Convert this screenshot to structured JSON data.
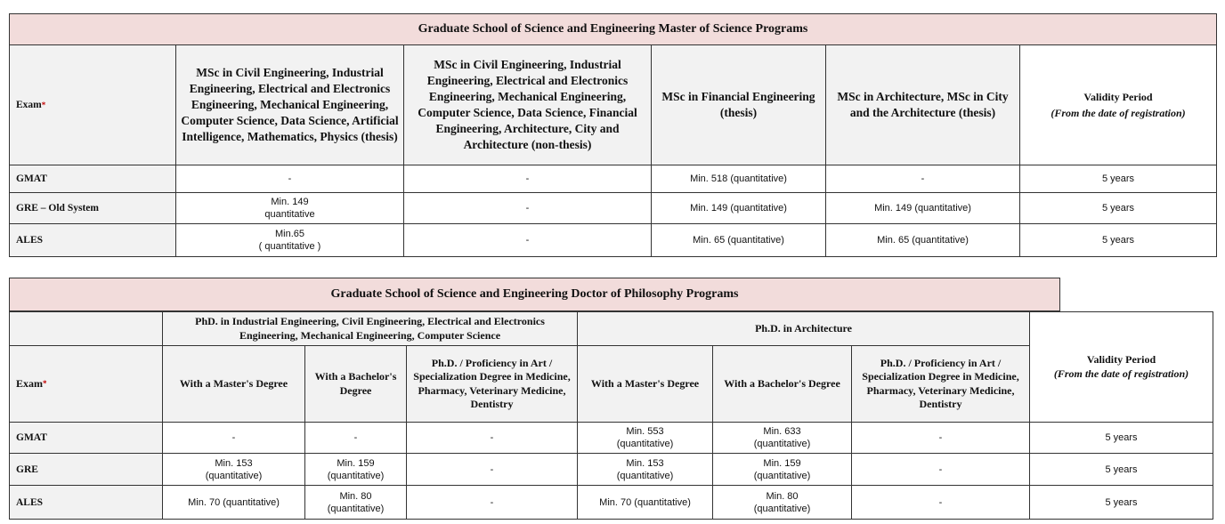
{
  "masters": {
    "title": "Graduate School of Science and Engineering Master of Science Programs",
    "exam_header": "Exam",
    "exam_marker": "*",
    "columns": [
      "MSc in Civil Engineering, Industrial Engineering, Electrical and Electronics Engineering, Mechanical Engineering, Computer Science, Data Science, Artificial Intelligence, Mathematics, Physics (thesis)",
      "MSc in Civil Engineering,  Industrial Engineering, Electrical and Electronics Engineering, Mechanical Engineering, Computer Science, Data Science, Financial Engineering, Architecture, City and Architecture (non-thesis)",
      "MSc in Financial Engineering (thesis)",
      "MSc in Architecture, MSc in City and the Architecture (thesis)"
    ],
    "validity_header": "Validity Period",
    "validity_sub": "(From the date of registration)",
    "rows": [
      {
        "exam": "GMAT",
        "cells": [
          "-",
          "-",
          "Min. 518 (quantitative)",
          "-",
          "5 years"
        ]
      },
      {
        "exam": "GRE – Old System",
        "cells": [
          "Min. 149\nquantitative",
          "-",
          "Min. 149 (quantitative)",
          "Min. 149 (quantitative)",
          "5 years"
        ]
      },
      {
        "exam": "ALES",
        "cells": [
          "Min.65\n( quantitative )",
          "-",
          "Min. 65 (quantitative)",
          "Min. 65 (quantitative)",
          "5 years"
        ]
      }
    ]
  },
  "phd": {
    "title": "Graduate School of Science and Engineering Doctor of Philosophy Programs",
    "group1": "PhD. in Industrial Engineering, Civil Engineering, Electrical and Electronics Engineering, Mechanical Engineering, Computer Science",
    "group2": "Ph.D. in Architecture",
    "exam_header": "Exam",
    "exam_marker": "*",
    "columns": [
      "With a Master's Degree",
      "With a Bachelor's Degree",
      "Ph.D. / Proficiency in Art / Specialization Degree in Medicine, Pharmacy, Veterinary Medicine, Dentistry",
      "With a Master's Degree",
      "With a Bachelor's Degree",
      "Ph.D. / Proficiency in Art / Specialization Degree in Medicine, Pharmacy, Veterinary Medicine, Dentistry"
    ],
    "validity_header": "Validity Period",
    "validity_sub": "(From the date of registration)",
    "rows": [
      {
        "exam": "GMAT",
        "cells": [
          "-",
          "-",
          "-",
          "Min. 553\n(quantitative)",
          "Min. 633\n(quantitative)",
          "-",
          "5 years"
        ]
      },
      {
        "exam": "GRE",
        "cells": [
          "Min. 153\n(quantitative)",
          "Min. 159\n(quantitative)",
          "-",
          "Min. 153\n(quantitative)",
          "Min. 159\n(quantitative)",
          "-",
          "5 years"
        ]
      },
      {
        "exam": "ALES",
        "cells": [
          "Min. 70 (quantitative)",
          "Min. 80\n(quantitative)",
          "-",
          "Min. 70 (quantitative)",
          "Min. 80\n(quantitative)",
          "-",
          "5 years"
        ]
      }
    ]
  }
}
